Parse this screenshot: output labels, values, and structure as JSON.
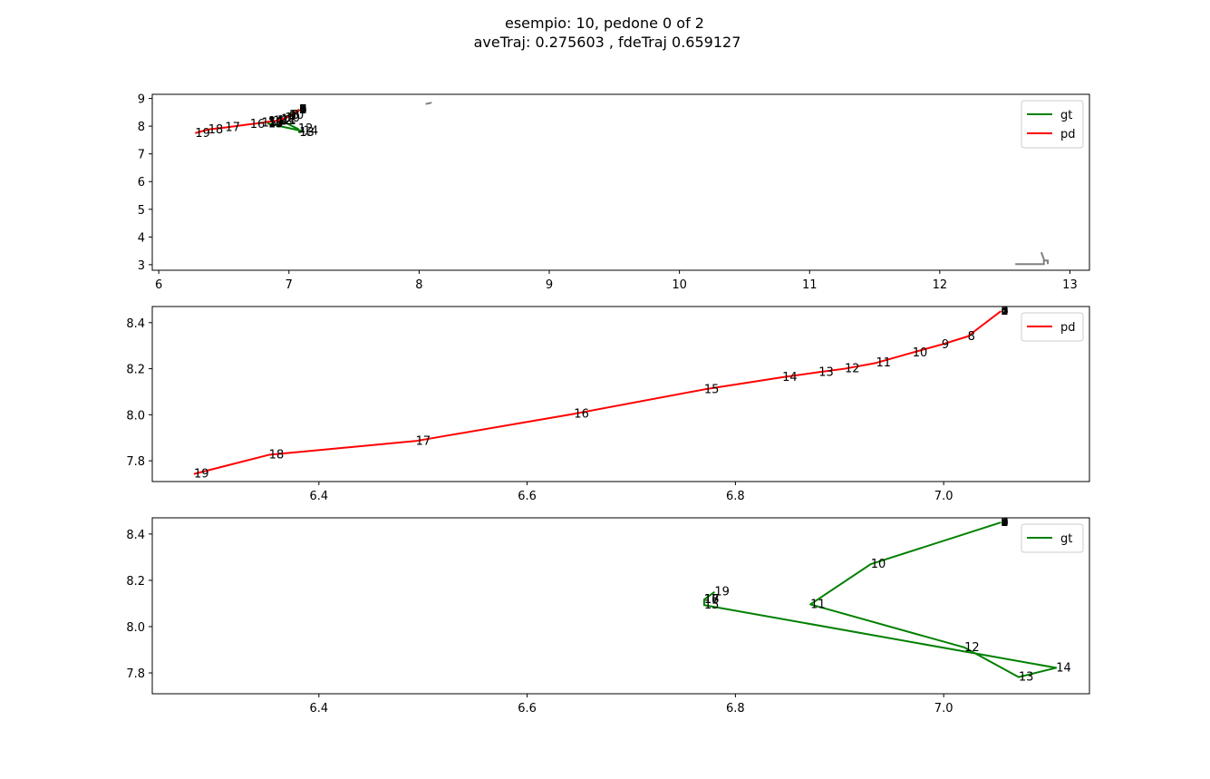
{
  "title_line1": "esempio: 10, pedone 0 of 2",
  "title_line2": "aveTraj: 0.275603 , fdeTraj 0.659127",
  "colors": {
    "gt": "#008000",
    "pd": "#ff0000",
    "map": "#808080",
    "point_label": "#000000"
  },
  "chart_data": [
    {
      "type": "line",
      "xlim": [
        5.95,
        13.15
      ],
      "ylim": [
        2.8,
        9.15
      ],
      "xticks": [
        6,
        7,
        8,
        9,
        10,
        11,
        12,
        13
      ],
      "yticks": [
        3,
        4,
        5,
        6,
        7,
        8,
        9
      ],
      "legend": "top-right",
      "legend_entries": [
        "gt",
        "pd"
      ],
      "map_lines": [
        [
          [
            8.05,
            8.8
          ],
          [
            8.09,
            8.84
          ],
          [
            8.09,
            8.82
          ]
        ],
        [
          [
            12.58,
            3.02
          ],
          [
            12.8,
            3.02
          ],
          [
            12.8,
            3.2
          ],
          [
            12.78,
            3.45
          ]
        ],
        [
          [
            12.8,
            3.15
          ],
          [
            12.83,
            3.15
          ],
          [
            12.83,
            3.02
          ]
        ]
      ],
      "series": [
        {
          "name": "gt",
          "labels": [
            "0",
            "1",
            "2",
            "3",
            "4",
            "5",
            "6",
            "7",
            "8",
            "9",
            "10",
            "11",
            "12",
            "13",
            "14",
            "15",
            "16",
            "17",
            "18",
            "19"
          ],
          "x": [
            7.08,
            7.08,
            7.08,
            7.08,
            7.08,
            7.08,
            7.08,
            7.08,
            7.08,
            7.08,
            7.0,
            6.94,
            7.07,
            7.08,
            7.11,
            6.84,
            6.84,
            6.84,
            6.84,
            6.85
          ],
          "y": [
            8.6,
            8.6,
            8.6,
            8.6,
            8.6,
            8.6,
            8.6,
            8.6,
            8.6,
            8.6,
            8.4,
            8.2,
            7.9,
            7.78,
            7.82,
            8.09,
            8.12,
            8.12,
            8.12,
            8.15
          ]
        },
        {
          "name": "pd",
          "labels": [
            "0",
            "1",
            "2",
            "3",
            "4",
            "5",
            "6",
            "7",
            "8",
            "9",
            "10",
            "11",
            "12",
            "13",
            "14",
            "15",
            "16",
            "17",
            "18",
            "19"
          ],
          "x": [
            7.08,
            7.08,
            7.08,
            7.08,
            7.08,
            7.08,
            7.08,
            7.08,
            7.02,
            7.0,
            6.97,
            6.94,
            6.91,
            6.88,
            6.84,
            6.79,
            6.7,
            6.51,
            6.38,
            6.28
          ],
          "y": [
            8.6,
            8.6,
            8.6,
            8.6,
            8.6,
            8.6,
            8.6,
            8.6,
            8.4,
            8.35,
            8.3,
            8.25,
            8.2,
            8.18,
            8.16,
            8.12,
            8.07,
            7.95,
            7.88,
            7.75
          ]
        }
      ]
    },
    {
      "type": "line",
      "xlim": [
        6.24,
        7.14
      ],
      "ylim": [
        7.71,
        8.47
      ],
      "xticks": [
        6.4,
        6.6,
        6.8,
        7.0
      ],
      "yticks": [
        7.8,
        8.0,
        8.2,
        8.4
      ],
      "legend": "top-right",
      "legend_entries": [
        "pd"
      ],
      "series": [
        {
          "name": "pd",
          "labels": [
            "0",
            "1",
            "2",
            "3",
            "4",
            "5",
            "6",
            "7",
            "8",
            "9",
            "10",
            "11",
            "12",
            "13",
            "14",
            "15",
            "16",
            "17",
            "18",
            "19"
          ],
          "x": [
            7.055,
            7.055,
            7.055,
            7.055,
            7.055,
            7.055,
            7.055,
            7.055,
            7.023,
            6.998,
            6.97,
            6.935,
            6.905,
            6.88,
            6.845,
            6.77,
            6.645,
            6.493,
            6.352,
            6.28
          ],
          "y": [
            8.45,
            8.45,
            8.45,
            8.45,
            8.45,
            8.45,
            8.45,
            8.45,
            8.34,
            8.305,
            8.27,
            8.225,
            8.2,
            8.185,
            8.163,
            8.11,
            8.004,
            7.886,
            7.826,
            7.743
          ]
        }
      ]
    },
    {
      "type": "line",
      "xlim": [
        6.24,
        7.14
      ],
      "ylim": [
        7.71,
        8.47
      ],
      "xticks": [
        6.4,
        6.6,
        6.8,
        7.0
      ],
      "yticks": [
        7.8,
        8.0,
        8.2,
        8.4
      ],
      "legend": "top-right",
      "legend_entries": [
        "gt"
      ],
      "series": [
        {
          "name": "gt",
          "labels": [
            "0",
            "1",
            "2",
            "3",
            "4",
            "5",
            "6",
            "7",
            "8",
            "9",
            "10",
            "11",
            "12",
            "13",
            "14",
            "15",
            "16",
            "17",
            "18",
            "19"
          ],
          "x": [
            7.055,
            7.055,
            7.055,
            7.055,
            7.055,
            7.055,
            7.055,
            7.055,
            7.055,
            7.055,
            6.93,
            6.872,
            7.02,
            7.072,
            7.108,
            6.77,
            6.77,
            6.77,
            6.77,
            6.78
          ],
          "y": [
            8.45,
            8.45,
            8.45,
            8.45,
            8.45,
            8.45,
            8.45,
            8.45,
            8.45,
            8.45,
            8.27,
            8.096,
            7.91,
            7.782,
            7.822,
            8.093,
            8.117,
            8.117,
            8.117,
            8.15
          ]
        }
      ]
    }
  ]
}
